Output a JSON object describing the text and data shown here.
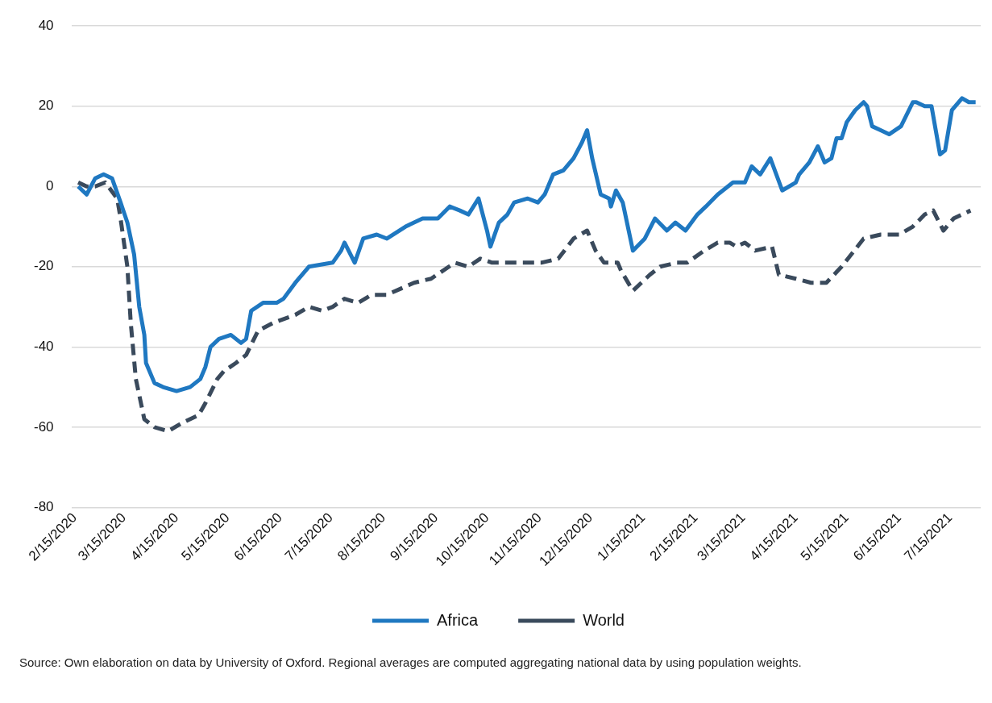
{
  "chart_data": {
    "type": "line",
    "xlim": [
      "2020-02-13",
      "2021-08-02"
    ],
    "xticks": [
      {
        "value": "2020-02-15",
        "label": "2/15/2020"
      },
      {
        "value": "2020-03-15",
        "label": "3/15/2020"
      },
      {
        "value": "2020-04-15",
        "label": "4/15/2020"
      },
      {
        "value": "2020-05-15",
        "label": "5/15/2020"
      },
      {
        "value": "2020-06-15",
        "label": "6/15/2020"
      },
      {
        "value": "2020-07-15",
        "label": "7/15/2020"
      },
      {
        "value": "2020-08-15",
        "label": "8/15/2020"
      },
      {
        "value": "2020-09-15",
        "label": "9/15/2020"
      },
      {
        "value": "2020-10-15",
        "label": "10/15/2020"
      },
      {
        "value": "2020-11-15",
        "label": "11/15/2020"
      },
      {
        "value": "2020-12-15",
        "label": "12/15/2020"
      },
      {
        "value": "2021-01-15",
        "label": "1/15/2021"
      },
      {
        "value": "2021-02-15",
        "label": "2/15/2021"
      },
      {
        "value": "2021-03-15",
        "label": "3/15/2021"
      },
      {
        "value": "2021-04-15",
        "label": "4/15/2021"
      },
      {
        "value": "2021-05-15",
        "label": "5/15/2021"
      },
      {
        "value": "2021-06-15",
        "label": "6/15/2021"
      },
      {
        "value": "2021-07-15",
        "label": "7/15/2021"
      }
    ],
    "ylim": [
      -80,
      40
    ],
    "yticks": [
      -80,
      -60,
      -40,
      -20,
      0,
      20,
      40
    ],
    "grid": "y",
    "legend": "bottom",
    "marker": "none",
    "annotations": [
      "Source: Own elaboration on data by University of Oxford. Regional averages are computed aggregating national data by using population weights."
    ],
    "series": [
      {
        "name": "Africa",
        "color": "#1f78c1",
        "line_style": "solid",
        "x": [
          "2020-02-17",
          "2020-02-22",
          "2020-02-27",
          "2020-03-03",
          "2020-03-08",
          "2020-03-13",
          "2020-03-17",
          "2020-03-21",
          "2020-03-24",
          "2020-03-27",
          "2020-03-28",
          "2020-04-02",
          "2020-04-07",
          "2020-04-15",
          "2020-04-23",
          "2020-04-29",
          "2020-05-02",
          "2020-05-05",
          "2020-05-10",
          "2020-05-17",
          "2020-05-23",
          "2020-05-26",
          "2020-05-29",
          "2020-06-05",
          "2020-06-13",
          "2020-06-17",
          "2020-06-24",
          "2020-07-02",
          "2020-07-16",
          "2020-07-21",
          "2020-07-23",
          "2020-07-29",
          "2020-08-03",
          "2020-08-11",
          "2020-08-17",
          "2020-08-28",
          "2020-09-07",
          "2020-09-16",
          "2020-09-23",
          "2020-09-29",
          "2020-10-04",
          "2020-10-10",
          "2020-10-15",
          "2020-10-17",
          "2020-10-22",
          "2020-10-27",
          "2020-10-31",
          "2020-11-08",
          "2020-11-14",
          "2020-11-18",
          "2020-11-23",
          "2020-11-29",
          "2020-12-05",
          "2020-12-10",
          "2020-12-13",
          "2020-12-16",
          "2020-12-21",
          "2020-12-26",
          "2020-12-27",
          "2020-12-30",
          "2021-01-03",
          "2021-01-09",
          "2021-01-16",
          "2021-01-22",
          "2021-01-29",
          "2021-02-03",
          "2021-02-09",
          "2021-02-16",
          "2021-02-21",
          "2021-02-28",
          "2021-03-06",
          "2021-03-09",
          "2021-03-16",
          "2021-03-20",
          "2021-03-25",
          "2021-03-31",
          "2021-04-07",
          "2021-04-15",
          "2021-04-17",
          "2021-04-23",
          "2021-04-28",
          "2021-05-02",
          "2021-05-06",
          "2021-05-09",
          "2021-05-12",
          "2021-05-15",
          "2021-05-20",
          "2021-05-25",
          "2021-05-27",
          "2021-05-30",
          "2021-06-04",
          "2021-06-09",
          "2021-06-16",
          "2021-06-23",
          "2021-06-25",
          "2021-06-30",
          "2021-07-04",
          "2021-07-09",
          "2021-07-12",
          "2021-07-16",
          "2021-07-22",
          "2021-07-26",
          "2021-07-30"
        ],
        "values": [
          0,
          -2,
          2,
          3,
          2,
          -4,
          -9,
          -17,
          -30,
          -37,
          -44,
          -49,
          -50,
          -51,
          -50,
          -48,
          -45,
          -40,
          -38,
          -37,
          -39,
          -38,
          -31,
          -29,
          -29,
          -28,
          -24,
          -20,
          -19,
          -16,
          -14,
          -19,
          -13,
          -12,
          -13,
          -10,
          -8,
          -8,
          -5,
          -6,
          -7,
          -3,
          -11,
          -15,
          -9,
          -7,
          -4,
          -3,
          -4,
          -2,
          3,
          4,
          7,
          11,
          14,
          7,
          -2,
          -3,
          -5,
          -1,
          -4,
          -16,
          -13,
          -8,
          -11,
          -9,
          -11,
          -7,
          -5,
          -2,
          0,
          1,
          1,
          5,
          3,
          7,
          -1,
          1,
          3,
          6,
          10,
          6,
          7,
          12,
          12,
          16,
          19,
          21,
          20,
          15,
          14,
          13,
          15,
          21,
          21,
          20,
          20,
          8,
          9,
          19,
          22,
          21,
          21
        ]
      },
      {
        "name": "World",
        "color": "#3a4a5c",
        "line_style": "dashed",
        "x": [
          "2020-02-17",
          "2020-02-22",
          "2020-02-27",
          "2020-03-04",
          "2020-03-11",
          "2020-03-13",
          "2020-03-17",
          "2020-03-19",
          "2020-03-22",
          "2020-03-27",
          "2020-04-02",
          "2020-04-10",
          "2020-04-18",
          "2020-04-28",
          "2020-05-02",
          "2020-05-09",
          "2020-05-13",
          "2020-05-20",
          "2020-05-26",
          "2020-06-02",
          "2020-06-11",
          "2020-06-24",
          "2020-07-02",
          "2020-07-10",
          "2020-07-16",
          "2020-07-23",
          "2020-07-31",
          "2020-08-08",
          "2020-08-17",
          "2020-09-02",
          "2020-09-12",
          "2020-09-26",
          "2020-10-04",
          "2020-10-11",
          "2020-10-18",
          "2020-10-31",
          "2020-11-16",
          "2020-11-26",
          "2020-12-05",
          "2020-12-13",
          "2020-12-18",
          "2020-12-23",
          "2020-12-31",
          "2021-01-02",
          "2021-01-09",
          "2021-01-19",
          "2021-01-25",
          "2021-02-04",
          "2021-02-10",
          "2021-02-20",
          "2021-02-28",
          "2021-03-07",
          "2021-03-11",
          "2021-03-16",
          "2021-03-22",
          "2021-04-01",
          "2021-04-05",
          "2021-04-15",
          "2021-04-24",
          "2021-05-03",
          "2021-05-12",
          "2021-05-25",
          "2021-06-04",
          "2021-06-15",
          "2021-06-23",
          "2021-06-30",
          "2021-07-05",
          "2021-07-11",
          "2021-07-17",
          "2021-07-27"
        ],
        "values": [
          1,
          0,
          0,
          1,
          -3,
          -8,
          -20,
          -34,
          -48,
          -58,
          -60,
          -61,
          -59,
          -57,
          -54,
          -48,
          -46,
          -44,
          -42,
          -36,
          -34,
          -32,
          -30,
          -31,
          -30,
          -28,
          -29,
          -27,
          -27,
          -24,
          -23,
          -19,
          -20,
          -18,
          -19,
          -19,
          -19,
          -18,
          -13,
          -11,
          -16,
          -19,
          -19,
          -21,
          -26,
          -22,
          -20,
          -19,
          -19,
          -16,
          -14,
          -14,
          -15,
          -14,
          -16,
          -15,
          -22,
          -23,
          -24,
          -24,
          -20,
          -13,
          -12,
          -12,
          -10,
          -7,
          -6,
          -11,
          -8,
          -6
        ]
      }
    ]
  }
}
